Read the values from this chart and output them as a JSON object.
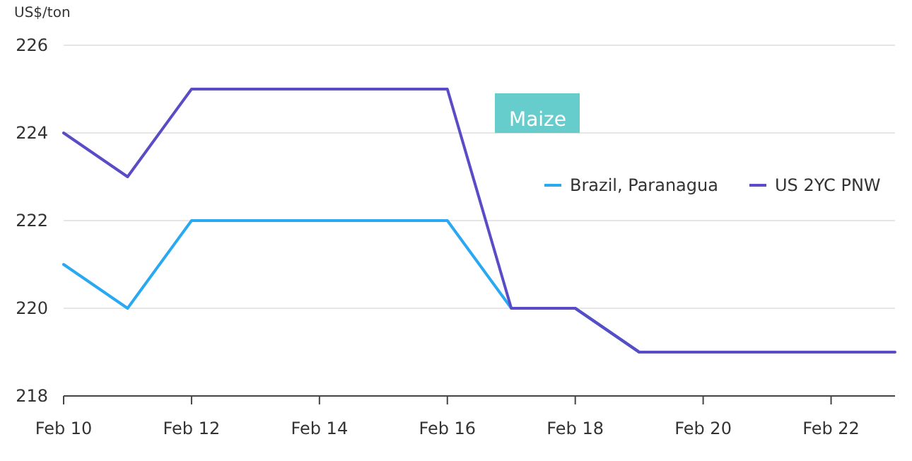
{
  "chart_data": {
    "type": "line",
    "ylabel": "US$/ton",
    "annotations": [
      "Maize"
    ],
    "x": [
      "--02-10",
      "--02-11",
      "--02-12",
      "--02-13",
      "--02-14",
      "--02-15",
      "--02-16",
      "--02-17",
      "--02-18",
      "--02-19",
      "--02-20",
      "--02-21",
      "--02-22",
      "--02-23"
    ],
    "series": [
      {
        "name": "Brazil, Paranagua",
        "color": "#2aa9f2",
        "values": [
          221,
          220,
          222,
          222,
          222,
          222,
          222,
          220,
          220,
          219,
          219,
          null,
          null,
          null
        ]
      },
      {
        "name": "US 2YC PNW",
        "color": "#5a4bc6",
        "values": [
          224,
          223,
          225,
          225,
          225,
          225,
          225,
          220,
          220,
          219,
          219,
          219,
          219,
          219
        ]
      }
    ],
    "xlim": [
      "--02-10",
      "--02-23"
    ],
    "xticks": [
      {
        "value": "--02-10",
        "label": "Feb 10"
      },
      {
        "value": "--02-12",
        "label": "Feb 12"
      },
      {
        "value": "--02-14",
        "label": "Feb 14"
      },
      {
        "value": "--02-16",
        "label": "Feb 16"
      },
      {
        "value": "--02-18",
        "label": "Feb 18"
      },
      {
        "value": "--02-20",
        "label": "Feb 20"
      },
      {
        "value": "--02-22",
        "label": "Feb 22"
      }
    ],
    "ylim": [
      218,
      226
    ],
    "yticks": [
      218,
      220,
      222,
      224,
      226
    ],
    "grid": "y",
    "legend": "right",
    "marker": "none",
    "line_style": "solid"
  }
}
